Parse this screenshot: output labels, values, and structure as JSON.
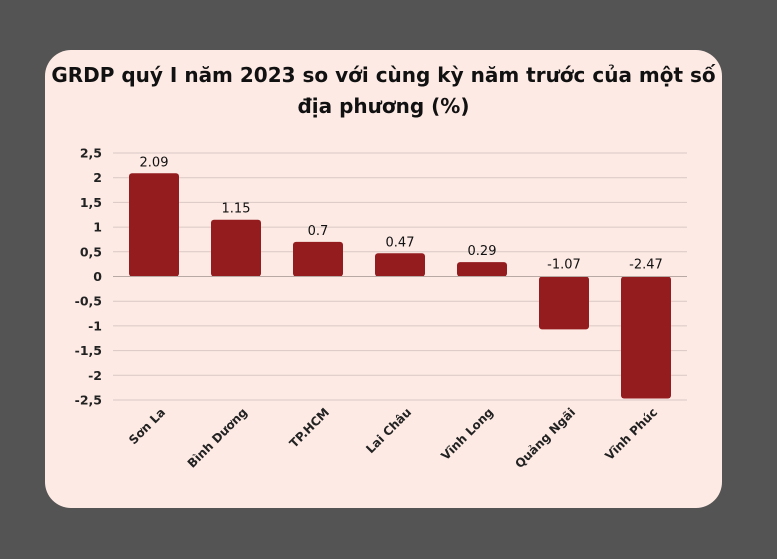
{
  "chart_data": {
    "type": "bar",
    "title": "GRDP quý I năm 2023 so với cùng kỳ năm trước của một số địa phương (%)",
    "categories": [
      "Sơn La",
      "Bình Dương",
      "TP.HCM",
      "Lai Châu",
      "Vĩnh Long",
      "Quảng Ngãi",
      "Vĩnh Phúc"
    ],
    "values": [
      2.09,
      1.15,
      0.7,
      0.47,
      0.29,
      -1.07,
      -2.47
    ],
    "data_labels": [
      "2.09",
      "1.15",
      "0.7",
      "0.47",
      "0.29",
      "-1.07",
      "-2.47"
    ],
    "xlabel": "",
    "ylabel": "",
    "ylim": [
      -2.5,
      2.5
    ],
    "yticks": [
      2.5,
      2,
      1.5,
      1,
      0.5,
      0,
      -0.5,
      -1,
      -1.5,
      -2,
      -2.5
    ],
    "ytick_labels": [
      "2,5",
      "2",
      "1,5",
      "1",
      "0,5",
      "0",
      "-0,5",
      "-1",
      "-1,5",
      "-2",
      "-2,5"
    ],
    "grid": true,
    "legend": "none",
    "colors": {
      "bar": "#941b1e",
      "background": "#fdeae4",
      "frame": "#545454",
      "grid": "#d8c8c4"
    }
  }
}
